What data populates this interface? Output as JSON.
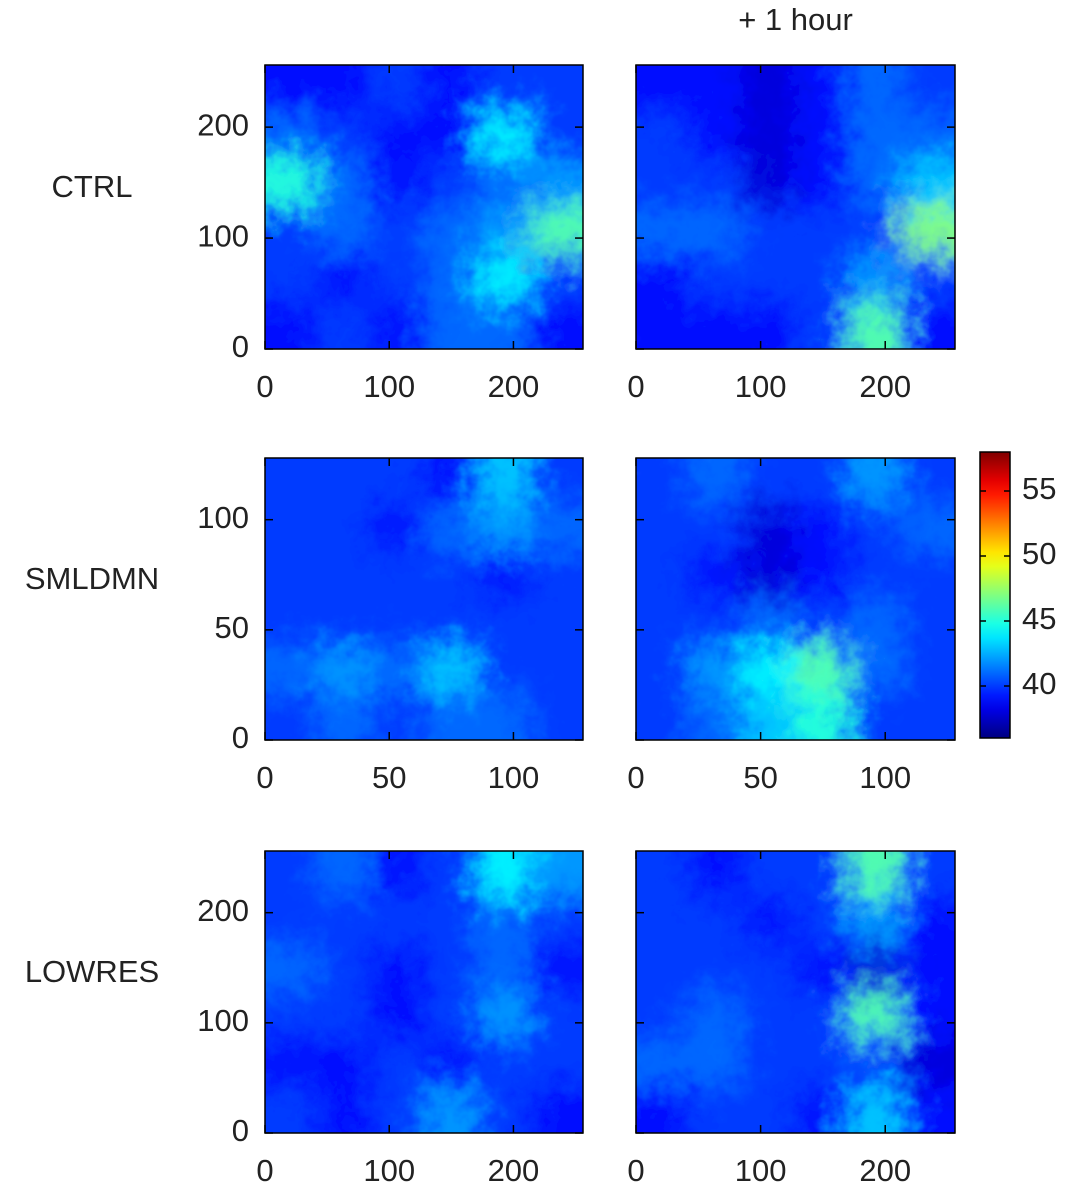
{
  "chart_data": [
    {
      "type": "heatmap",
      "label": "CTRL",
      "xlim": [
        0,
        256
      ],
      "ylim": [
        0,
        256
      ],
      "xticks": [
        0,
        100,
        200
      ],
      "yticks": [
        0,
        100,
        200
      ],
      "colormap": "jet",
      "clim": [
        36,
        58
      ],
      "show_yticklabels": true,
      "z": [
        [
          39,
          39,
          40,
          39,
          40,
          40
        ],
        [
          41,
          40,
          39,
          39,
          44,
          40
        ],
        [
          45,
          41,
          39,
          40,
          41,
          42
        ],
        [
          40,
          41,
          40,
          41,
          42,
          46
        ],
        [
          40,
          39,
          40,
          41,
          44,
          40
        ],
        [
          39,
          40,
          39,
          41,
          41,
          39
        ]
      ]
    },
    {
      "type": "heatmap",
      "title": "+ 1 hour",
      "xlim": [
        0,
        256
      ],
      "ylim": [
        0,
        256
      ],
      "xticks": [
        0,
        100,
        200
      ],
      "yticks": [
        0,
        100,
        200
      ],
      "colormap": "jet",
      "clim": [
        36,
        58
      ],
      "show_yticklabels": false,
      "z": [
        [
          39,
          39,
          38,
          39,
          41,
          40
        ],
        [
          40,
          39,
          38,
          39,
          41,
          41
        ],
        [
          40,
          40,
          38,
          39,
          41,
          43
        ],
        [
          41,
          41,
          40,
          40,
          40,
          47
        ],
        [
          39,
          40,
          40,
          40,
          42,
          40
        ],
        [
          39,
          39,
          39,
          40,
          46,
          39
        ]
      ]
    },
    {
      "type": "heatmap",
      "label": "SMLDMN",
      "xlim": [
        0,
        128
      ],
      "ylim": [
        0,
        128
      ],
      "xticks": [
        0,
        50,
        100
      ],
      "yticks": [
        0,
        50,
        100
      ],
      "colormap": "jet",
      "clim": [
        36,
        58
      ],
      "show_yticklabels": true,
      "z": [
        [
          40,
          40,
          40,
          39,
          43,
          40
        ],
        [
          40,
          40,
          39,
          41,
          42,
          41
        ],
        [
          40,
          40,
          40,
          40,
          39,
          40
        ],
        [
          40,
          40,
          40,
          40,
          40,
          40
        ],
        [
          41,
          42,
          41,
          43,
          40,
          40
        ],
        [
          40,
          41,
          40,
          41,
          41,
          40
        ]
      ]
    },
    {
      "type": "heatmap",
      "xlim": [
        0,
        128
      ],
      "ylim": [
        0,
        128
      ],
      "xticks": [
        0,
        50,
        100
      ],
      "yticks": [
        0,
        50,
        100
      ],
      "colormap": "jet",
      "clim": [
        36,
        58
      ],
      "show_yticklabels": false,
      "z": [
        [
          40,
          41,
          40,
          40,
          42,
          40
        ],
        [
          40,
          40,
          38,
          39,
          40,
          41
        ],
        [
          40,
          39,
          38,
          39,
          40,
          40
        ],
        [
          40,
          40,
          41,
          40,
          41,
          40
        ],
        [
          40,
          42,
          44,
          46,
          41,
          40
        ],
        [
          40,
          41,
          43,
          45,
          40,
          40
        ]
      ],
      "colorbar": {
        "ticks": [
          40,
          45,
          50,
          55
        ]
      }
    },
    {
      "type": "heatmap",
      "label": "LOWRES",
      "xlim": [
        0,
        256
      ],
      "ylim": [
        0,
        256
      ],
      "xticks": [
        0,
        100,
        200
      ],
      "yticks": [
        0,
        100,
        200
      ],
      "colormap": "jet",
      "clim": [
        36,
        58
      ],
      "show_yticklabels": true,
      "z": [
        [
          40,
          41,
          39,
          40,
          44,
          42
        ],
        [
          40,
          40,
          40,
          40,
          41,
          40
        ],
        [
          41,
          40,
          39,
          40,
          41,
          39
        ],
        [
          40,
          40,
          39,
          40,
          42,
          40
        ],
        [
          39,
          39,
          40,
          39,
          40,
          40
        ],
        [
          40,
          39,
          40,
          42,
          40,
          39
        ]
      ]
    },
    {
      "type": "heatmap",
      "xlim": [
        0,
        256
      ],
      "ylim": [
        0,
        256
      ],
      "xticks": [
        0,
        100,
        200
      ],
      "yticks": [
        0,
        100,
        200
      ],
      "colormap": "jet",
      "clim": [
        36,
        58
      ],
      "show_yticklabels": false,
      "z": [
        [
          40,
          39,
          40,
          40,
          46,
          40
        ],
        [
          40,
          40,
          39,
          40,
          42,
          39
        ],
        [
          40,
          40,
          40,
          39,
          38,
          39
        ],
        [
          40,
          41,
          40,
          40,
          46,
          39
        ],
        [
          41,
          41,
          40,
          40,
          40,
          38
        ],
        [
          39,
          40,
          40,
          39,
          43,
          39
        ]
      ]
    }
  ]
}
